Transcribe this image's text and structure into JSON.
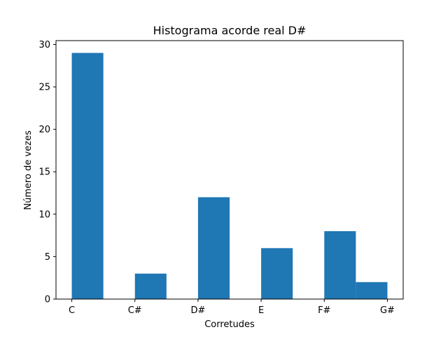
{
  "chart_data": {
    "type": "bar",
    "title": "Histograma acorde real D#",
    "xlabel": "Corretudes",
    "ylabel": "Número de vezes",
    "x_ticks": [
      {
        "label": "C",
        "value": 0
      },
      {
        "label": "C#",
        "value": 1
      },
      {
        "label": "D#",
        "value": 2
      },
      {
        "label": "E",
        "value": 3
      },
      {
        "label": "F#",
        "value": 4
      },
      {
        "label": "G#",
        "value": 5
      }
    ],
    "bins": [
      {
        "start": 0.0,
        "end": 0.5,
        "value": 29
      },
      {
        "start": 1.0,
        "end": 1.5,
        "value": 3
      },
      {
        "start": 2.0,
        "end": 2.5,
        "value": 12
      },
      {
        "start": 3.0,
        "end": 3.5,
        "value": 6
      },
      {
        "start": 4.0,
        "end": 4.5,
        "value": 8
      },
      {
        "start": 4.5,
        "end": 5.0,
        "value": 2
      }
    ],
    "xlim": [
      -0.25,
      5.25
    ],
    "ylim": [
      0,
      30.45
    ],
    "y_ticks": [
      0,
      5,
      10,
      15,
      20,
      25,
      30
    ],
    "bar_color": "#1f77b4",
    "grid": false
  }
}
